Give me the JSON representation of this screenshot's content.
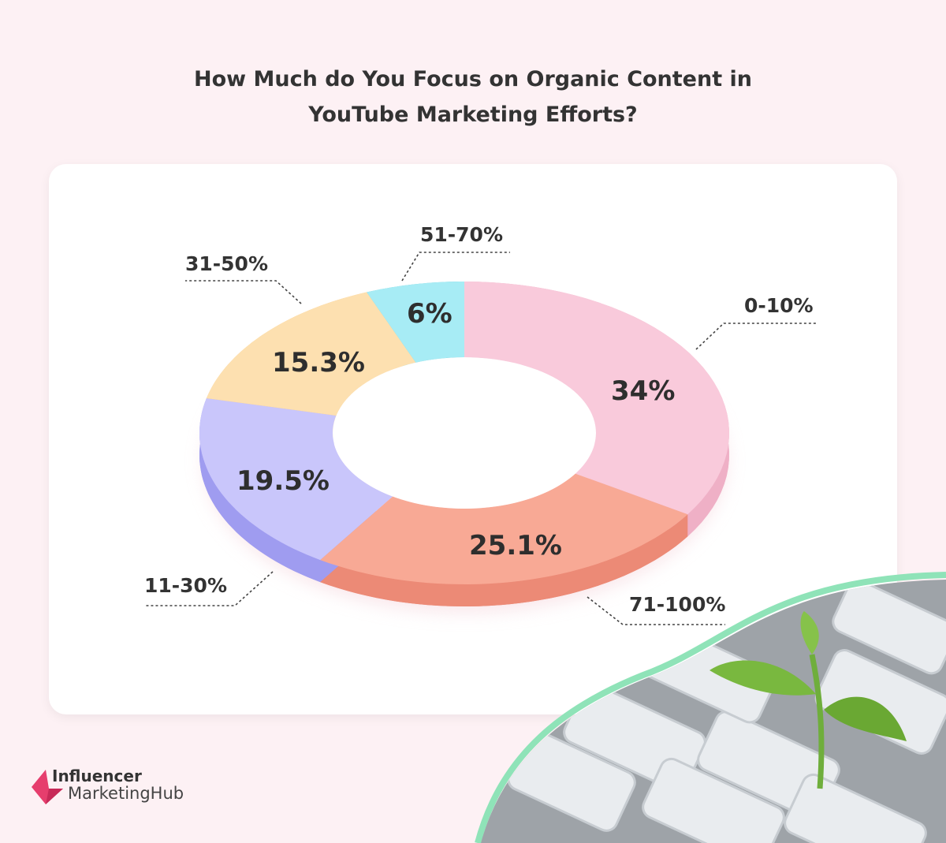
{
  "chart_data": {
    "type": "pie",
    "title": "How Much do You Focus on Organic Content in YouTube Marketing Efforts?",
    "title_lines": [
      "How Much do You Focus on Organic Content in",
      "YouTube Marketing Efforts?"
    ],
    "style": "3d-donut",
    "categories": [
      "0-10%",
      "71-100%",
      "11-30%",
      "31-50%",
      "51-70%"
    ],
    "values": [
      34,
      25.1,
      19.5,
      15.3,
      6
    ],
    "value_labels": [
      "34%",
      "25.1%",
      "19.5%",
      "15.3%",
      "6%"
    ],
    "colors": [
      "#f9cadb",
      "#f8a995",
      "#c9c6fb",
      "#fde0b0",
      "#a7ecf5"
    ],
    "side_colors": [
      "#efb0c6",
      "#ec8a76",
      "#9f9cf0",
      "#f6c070",
      "#5cc6d3"
    ]
  },
  "brand": {
    "logo_line1": "Influencer",
    "logo_line2": "MarketingHub",
    "logo_color": "#e63e6d"
  }
}
